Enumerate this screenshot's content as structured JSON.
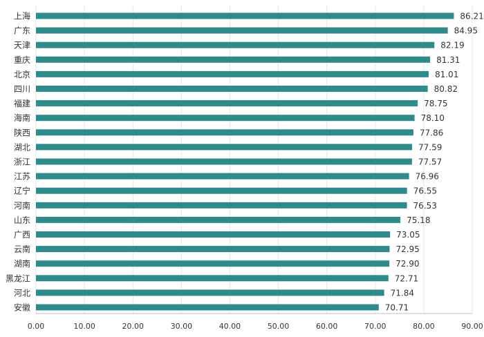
{
  "chart_data": {
    "type": "bar",
    "orientation": "horizontal",
    "title": "",
    "xlabel": "",
    "ylabel": "",
    "color": "#2e8b8b",
    "xlim": [
      0,
      90
    ],
    "ticks": [
      "0.00",
      "10.00",
      "20.00",
      "30.00",
      "40.00",
      "50.00",
      "60.00",
      "70.00",
      "80.00",
      "90.00"
    ],
    "grid": true,
    "legend": "none",
    "categories": [
      "上海",
      "广东",
      "天津",
      "重庆",
      "北京",
      "四川",
      "福建",
      "海南",
      "陕西",
      "湖北",
      "浙江",
      "江苏",
      "辽宁",
      "河南",
      "山东",
      "广西",
      "云南",
      "湖南",
      "黑龙江",
      "河北",
      "安徽"
    ],
    "values": [
      86.21,
      84.95,
      82.19,
      81.31,
      81.01,
      80.82,
      78.75,
      78.1,
      77.86,
      77.59,
      77.57,
      76.96,
      76.55,
      76.53,
      75.18,
      73.05,
      72.95,
      72.9,
      72.71,
      71.84,
      70.71
    ],
    "value_labels": [
      "86.21",
      "84.95",
      "82.19",
      "81.31",
      "81.01",
      "80.82",
      "78.75",
      "78.10",
      "77.86",
      "77.59",
      "77.57",
      "76.96",
      "76.55",
      "76.53",
      "75.18",
      "73.05",
      "72.95",
      "72.90",
      "72.71",
      "71.84",
      "70.71"
    ]
  }
}
